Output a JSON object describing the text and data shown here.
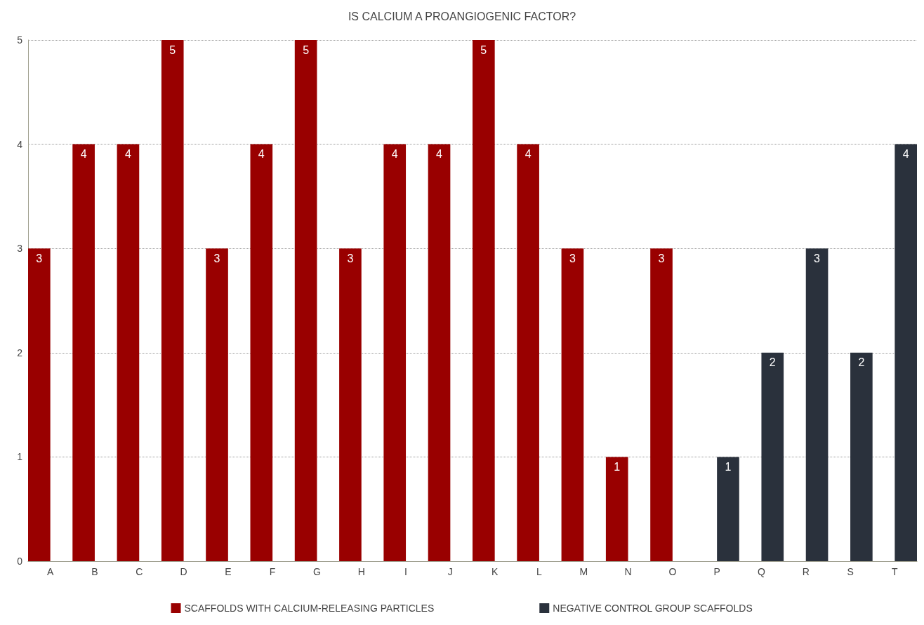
{
  "chart_data": {
    "type": "bar",
    "title": "IS CALCIUM A PROANGIOGENIC FACTOR?",
    "categories": [
      "A",
      "B",
      "C",
      "D",
      "E",
      "F",
      "G",
      "H",
      "I",
      "J",
      "K",
      "L",
      "M",
      "N",
      "O",
      "P",
      "Q",
      "R",
      "S",
      "T"
    ],
    "series": [
      {
        "name": "SCAFFOLDS WITH CALCIUM-RELEASING PARTICLES",
        "color": "#990000",
        "values": [
          3,
          4,
          4,
          5,
          3,
          4,
          5,
          3,
          4,
          4,
          5,
          4,
          3,
          1,
          3,
          null,
          null,
          null,
          null,
          null
        ]
      },
      {
        "name": "NEGATIVE CONTROL GROUP SCAFFOLDS",
        "color": "#2a313c",
        "values": [
          null,
          null,
          null,
          null,
          null,
          null,
          null,
          null,
          null,
          null,
          null,
          null,
          null,
          null,
          null,
          1,
          2,
          3,
          2,
          4
        ]
      }
    ],
    "ylim": [
      0,
      5
    ],
    "yticks": [
      0,
      1,
      2,
      3,
      4,
      5
    ],
    "grid": "y",
    "legend": "bottom",
    "data_labels": true
  }
}
